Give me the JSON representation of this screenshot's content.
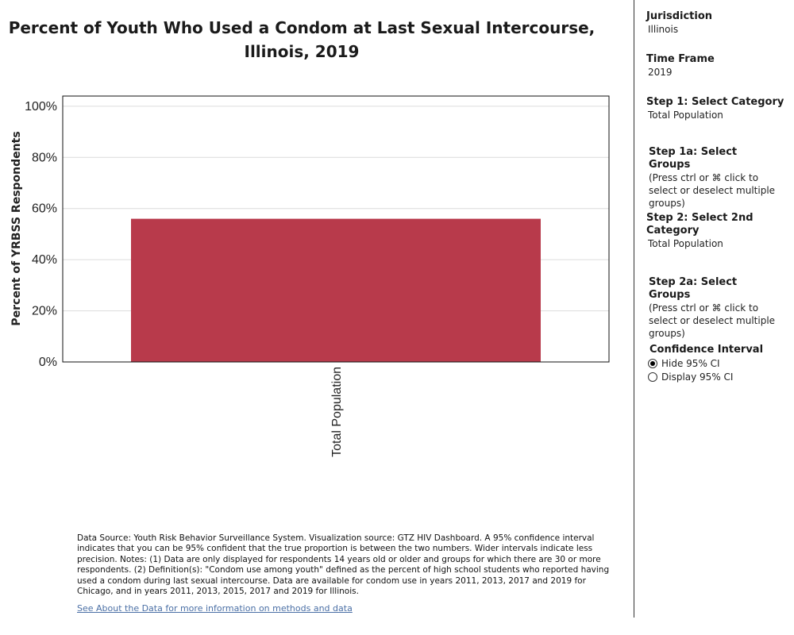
{
  "chart_data": {
    "type": "bar",
    "title": "Percent of Youth Who Used a Condom at Last Sexual Intercourse, Illinois, 2019",
    "xlabel": "",
    "ylabel": "Percent of YRBSS Respondents",
    "categories": [
      "Total Population"
    ],
    "values": [
      56
    ],
    "ylim": [
      0,
      104
    ],
    "yticks": [
      "0%",
      "20%",
      "40%",
      "60%",
      "80%",
      "100%"
    ],
    "ytick_values": [
      0,
      20,
      40,
      60,
      80,
      100
    ],
    "grid": true,
    "bar_color": "#b83a4b"
  },
  "footnote": "Data Source: Youth Risk Behavior Surveillance System. Visualization source: GTZ HIV Dashboard. A 95% confidence interval indicates that you can be 95% confident that the true proportion is between the two numbers. Wider intervals indicate less precision. Notes: (1) Data are only displayed for respondents 14 years old or older and groups for which there are 30 or more respondents. (2) Definition(s): \"Condom use among youth\" defined as the percent of high school students who reported having used a condom during last sexual intercourse. Data are available for condom use in years 2011, 2013, 2017 and 2019 for Chicago, and in years 2011, 2013, 2015, 2017 and 2019 for Illinois.",
  "about_link": "See About the Data for more information on methods and data",
  "panel": {
    "jurisdiction": {
      "title": "Jurisdiction",
      "value": "Illinois"
    },
    "time_frame": {
      "title": "Time Frame",
      "value": "2019"
    },
    "step1": {
      "title": "Step 1: Select Category",
      "value": "Total Population"
    },
    "step1a": {
      "title": "Step 1a: Select Groups",
      "note": "(Press ctrl or ⌘ click to select or deselect multiple groups)"
    },
    "step2": {
      "title": "Step 2: Select 2nd Category",
      "value": "Total Population"
    },
    "step2a": {
      "title": "Step 2a: Select Groups",
      "note": "(Press ctrl or ⌘ click to select or deselect multiple groups)"
    },
    "ci": {
      "title": "Confidence Interval",
      "options": [
        "Hide 95% CI",
        "Display 95% CI"
      ],
      "selected": "Hide 95% CI"
    }
  }
}
